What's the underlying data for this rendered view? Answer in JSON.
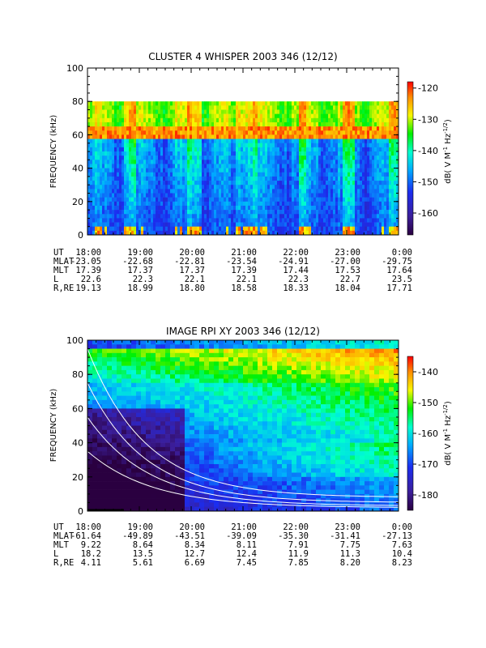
{
  "chart_data": [
    {
      "type": "heatmap",
      "title": "CLUSTER 4 WHISPER 2003 346 (12/12)",
      "ylabel": "FREQUENCY (kHz)",
      "ylim": [
        0,
        100
      ],
      "y_ticks": [
        "0",
        "20",
        "40",
        "60",
        "80",
        "100"
      ],
      "data_ceiling_khz": 80,
      "x_range_ut": [
        "18:00",
        "0:00"
      ],
      "colorbar": {
        "label_parts": [
          "dB( V M",
          "-1",
          " Hz",
          "-1/2",
          ")"
        ],
        "ticks": [
          "-120",
          "-130",
          "-140",
          "-150",
          "-160"
        ],
        "range": [
          -167,
          -118
        ]
      },
      "band_khz": [
        16,
        22
      ],
      "ephemeris": {
        "labels": [
          "UT",
          "MLAT",
          "MLT",
          "L",
          "R,RE"
        ],
        "columns": [
          [
            "18:00",
            "-23.05",
            "17.39",
            "22.6",
            "19.13"
          ],
          [
            "19:00",
            "-22.68",
            "17.37",
            "22.3",
            "18.99"
          ],
          [
            "20:00",
            "-22.81",
            "17.37",
            "22.1",
            "18.80"
          ],
          [
            "21:00",
            "-23.54",
            "17.39",
            "22.1",
            "18.58"
          ],
          [
            "22:00",
            "-24.91",
            "17.44",
            "22.3",
            "18.33"
          ],
          [
            "23:00",
            "-27.00",
            "17.53",
            "22.7",
            "18.04"
          ],
          [
            "0:00",
            "-29.75",
            "17.64",
            "23.5",
            "17.71"
          ]
        ]
      }
    },
    {
      "type": "heatmap",
      "title": "IMAGE RPI XY 2003 346 (12/12)",
      "ylabel": "FREQUENCY (kHz)",
      "ylim": [
        0,
        100
      ],
      "y_ticks": [
        "0",
        "20",
        "40",
        "60",
        "80",
        "100"
      ],
      "x_range_ut": [
        "18:00",
        "0:00"
      ],
      "colorbar": {
        "label_parts": [
          "dB( V M",
          "-1",
          " Hz",
          "-1/2",
          ")"
        ],
        "ticks": [
          "-140",
          "-150",
          "-160",
          "-170",
          "-180"
        ],
        "range": [
          -185,
          -135
        ]
      },
      "ephemeris": {
        "labels": [
          "UT",
          "MLAT",
          "MLT",
          "L",
          "R,RE"
        ],
        "columns": [
          [
            "18:00",
            "-61.64",
            "9.22",
            "18.2",
            "4.11"
          ],
          [
            "19:00",
            "-49.89",
            "8.64",
            "13.5",
            "5.61"
          ],
          [
            "20:00",
            "-43.51",
            "8.34",
            "12.7",
            "6.69"
          ],
          [
            "21:00",
            "-39.09",
            "8.11",
            "12.4",
            "7.45"
          ],
          [
            "22:00",
            "-35.30",
            "7.91",
            "11.9",
            "7.85"
          ],
          [
            "23:00",
            "-31.41",
            "7.75",
            "11.3",
            "8.20"
          ],
          [
            "0:00",
            "-27.13",
            "7.63",
            "10.4",
            "8.23"
          ]
        ]
      }
    }
  ]
}
